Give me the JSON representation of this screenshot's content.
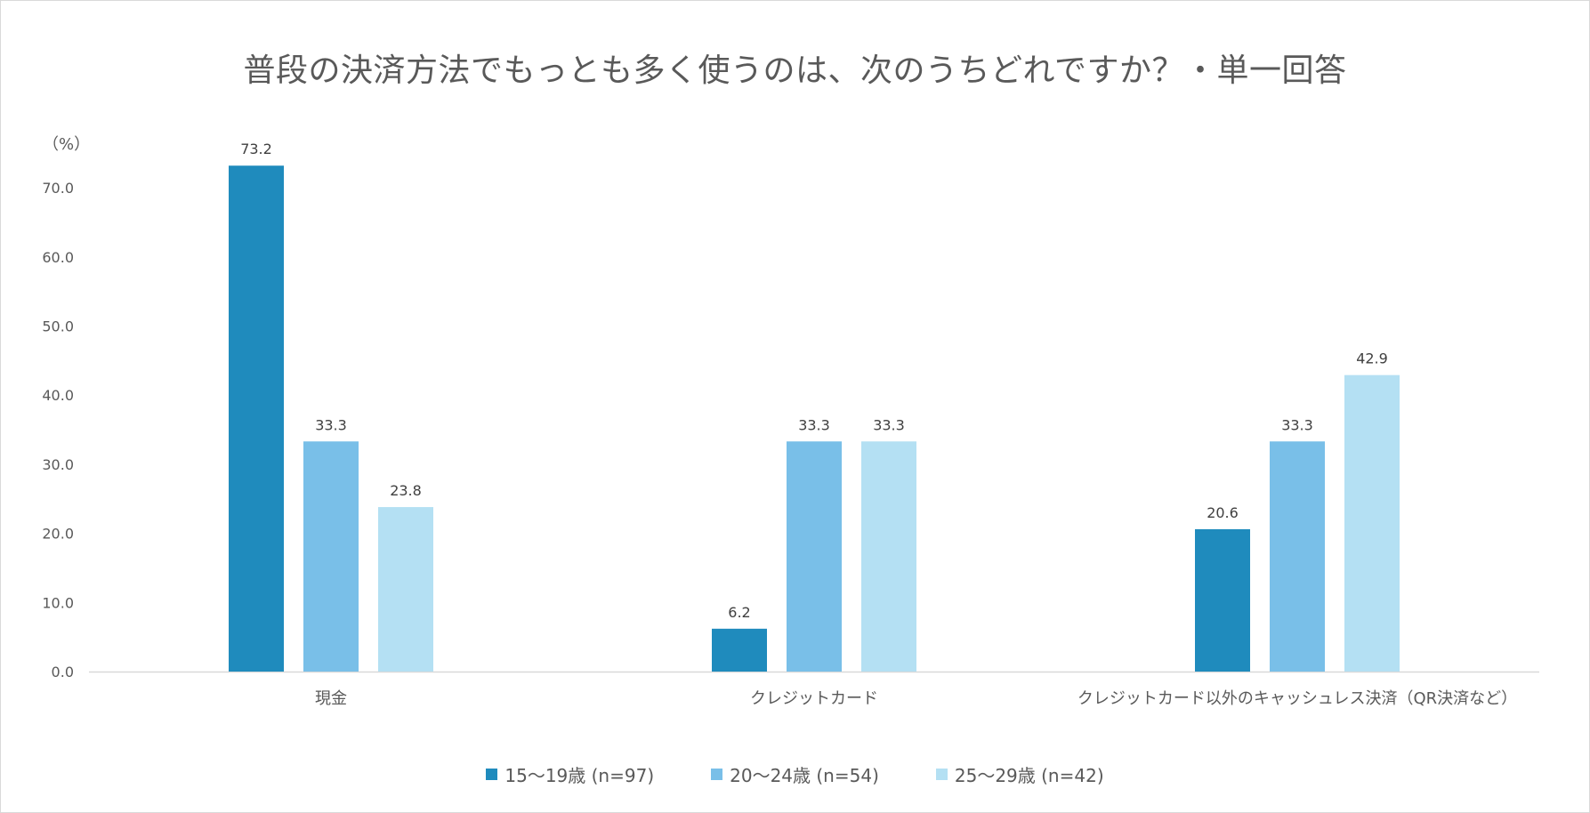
{
  "chart_data": {
    "type": "bar",
    "title": "普段の決済方法でもっとも多く使うのは、次のうちどれですか？・単一回答",
    "ylabel": "（%）",
    "xlabel": "",
    "ylim": [
      0,
      73.2
    ],
    "yticks": [
      "0.0",
      "10.0",
      "20.0",
      "30.0",
      "40.0",
      "50.0",
      "60.0",
      "70.0"
    ],
    "categories": [
      "現金",
      "クレジットカード",
      "クレジットカード以外のキャッシュレス決済（QR決済など）"
    ],
    "series": [
      {
        "name": "15～19歳 (n=97)",
        "color": "#1f8bbd",
        "values": [
          73.2,
          6.2,
          20.6
        ],
        "labels": [
          "73.2",
          "6.2",
          "20.6"
        ]
      },
      {
        "name": "20～24歳 (n=54)",
        "color": "#79bfe8",
        "values": [
          33.3,
          33.3,
          33.3
        ],
        "labels": [
          "33.3",
          "33.3",
          "33.3"
        ]
      },
      {
        "name": "25～29歳 (n=42)",
        "color": "#b4e0f3",
        "values": [
          23.8,
          33.3,
          42.9
        ],
        "labels": [
          "23.8",
          "33.3",
          "42.9"
        ]
      }
    ],
    "grid": false,
    "legend_position": "bottom"
  }
}
